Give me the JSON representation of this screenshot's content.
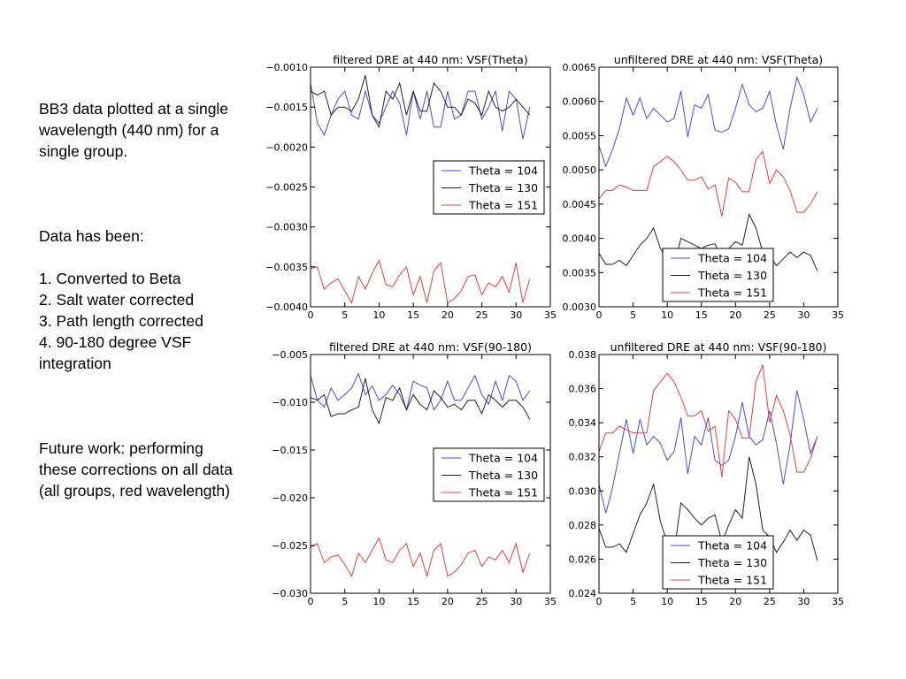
{
  "notes": {
    "intro": "BB3 data plotted at a single wavelength (440 nm) for a single group.",
    "steps_heading": "Data has been:",
    "steps": [
      "1. Converted to Beta",
      "2. Salt water corrected",
      "3. Path length corrected",
      "4. 90-180 degree VSF integration"
    ],
    "future": "Future work: performing these corrections on all data (all groups, red wavelength)"
  },
  "colors": {
    "theta_104": "#4a4ad6",
    "theta_130": "#222222",
    "theta_151": "#e04040"
  },
  "chart_data": [
    {
      "type": "line",
      "title": "filtered DRE at 440 nm: VSF(Theta)",
      "xlim": [
        0,
        35
      ],
      "ylim": [
        -0.004,
        -0.001
      ],
      "xticks": [
        "0",
        "5",
        "10",
        "15",
        "20",
        "25",
        "30",
        "35"
      ],
      "yticks": [
        "-0.0040",
        "-0.0035",
        "-0.0030",
        "-0.0025",
        "-0.0020",
        "-0.0015",
        "-0.0010"
      ],
      "legend": "right",
      "x": [
        0,
        1,
        2,
        3,
        4,
        5,
        6,
        7,
        8,
        9,
        10,
        11,
        12,
        13,
        14,
        15,
        16,
        17,
        18,
        19,
        20,
        21,
        22,
        23,
        24,
        25,
        26,
        27,
        28,
        29,
        30,
        31,
        32
      ],
      "series": [
        {
          "name": "Theta = 104",
          "color": "#4a4ad6",
          "values": [
            -0.0012,
            -0.0017,
            -0.00185,
            -0.0016,
            -0.0014,
            -0.0013,
            -0.0016,
            -0.00165,
            -0.0013,
            -0.0016,
            -0.0017,
            -0.0015,
            -0.0013,
            -0.00145,
            -0.00185,
            -0.0013,
            -0.00165,
            -0.0013,
            -0.00175,
            -0.00175,
            -0.0013,
            -0.00165,
            -0.0016,
            -0.0013,
            -0.0013,
            -0.00165,
            -0.0015,
            -0.0013,
            -0.0018,
            -0.0013,
            -0.0014,
            -0.0019,
            -0.0015
          ]
        },
        {
          "name": "Theta = 130",
          "color": "#222222",
          "values": [
            -0.0013,
            -0.00135,
            -0.0013,
            -0.0016,
            -0.0015,
            -0.0015,
            -0.00155,
            -0.0014,
            -0.0011,
            -0.0016,
            -0.00175,
            -0.0013,
            -0.0014,
            -0.0012,
            -0.0016,
            -0.0013,
            -0.00155,
            -0.00155,
            -0.0012,
            -0.0013,
            -0.0015,
            -0.0015,
            -0.0016,
            -0.0014,
            -0.00145,
            -0.0016,
            -0.0013,
            -0.0015,
            -0.00155,
            -0.0015,
            -0.0014,
            -0.0015,
            -0.0016
          ]
        },
        {
          "name": "Theta = 151",
          "color": "#e04040",
          "values": [
            -0.00352,
            -0.0035,
            -0.00378,
            -0.0037,
            -0.00365,
            -0.0038,
            -0.00395,
            -0.00362,
            -0.00378,
            -0.00358,
            -0.00342,
            -0.00372,
            -0.00375,
            -0.0036,
            -0.0035,
            -0.00385,
            -0.00362,
            -0.00395,
            -0.00355,
            -0.00345,
            -0.00395,
            -0.0039,
            -0.0038,
            -0.00362,
            -0.0036,
            -0.00385,
            -0.0037,
            -0.00375,
            -0.00362,
            -0.00382,
            -0.00345,
            -0.00395,
            -0.00365
          ]
        }
      ]
    },
    {
      "type": "line",
      "title": "unfiltered DRE at 440 nm: VSF(Theta)",
      "xlim": [
        0,
        35
      ],
      "ylim": [
        0.003,
        0.0065
      ],
      "xticks": [
        "0",
        "5",
        "10",
        "15",
        "20",
        "25",
        "30",
        "35"
      ],
      "yticks": [
        "0.0030",
        "0.0035",
        "0.0040",
        "0.0045",
        "0.0050",
        "0.0055",
        "0.0060",
        "0.0065"
      ],
      "legend": "lower right",
      "x": [
        0,
        1,
        2,
        3,
        4,
        5,
        6,
        7,
        8,
        9,
        10,
        11,
        12,
        13,
        14,
        15,
        16,
        17,
        18,
        19,
        20,
        21,
        22,
        23,
        24,
        25,
        26,
        27,
        28,
        29,
        30,
        31,
        32
      ],
      "series": [
        {
          "name": "Theta = 104",
          "color": "#4a4ad6",
          "values": [
            0.00535,
            0.00505,
            0.0053,
            0.0056,
            0.00605,
            0.0058,
            0.00605,
            0.00575,
            0.0059,
            0.0058,
            0.0057,
            0.00575,
            0.00615,
            0.00548,
            0.00595,
            0.0059,
            0.0061,
            0.00558,
            0.00555,
            0.0056,
            0.0059,
            0.00625,
            0.00595,
            0.00585,
            0.0059,
            0.00615,
            0.00565,
            0.0053,
            0.0059,
            0.00635,
            0.0061,
            0.0057,
            0.0059
          ]
        },
        {
          "name": "Theta = 130",
          "color": "#222222",
          "values": [
            0.00378,
            0.00362,
            0.00362,
            0.00368,
            0.0036,
            0.00375,
            0.0039,
            0.004,
            0.00415,
            0.00385,
            0.0037,
            0.0036,
            0.004,
            0.00395,
            0.0039,
            0.00385,
            0.0039,
            0.00392,
            0.0037,
            0.00385,
            0.00395,
            0.0039,
            0.00435,
            0.00415,
            0.0038,
            0.00375,
            0.0036,
            0.0037,
            0.0038,
            0.00372,
            0.0038,
            0.00375,
            0.00352
          ]
        },
        {
          "name": "Theta = 151",
          "color": "#e04040",
          "values": [
            0.00458,
            0.0047,
            0.0047,
            0.00478,
            0.00475,
            0.0047,
            0.0047,
            0.0047,
            0.00505,
            0.00512,
            0.0052,
            0.00512,
            0.005,
            0.00485,
            0.00485,
            0.0049,
            0.00472,
            0.00478,
            0.00432,
            0.00488,
            0.00482,
            0.00468,
            0.00468,
            0.00515,
            0.00527,
            0.0048,
            0.005,
            0.0049,
            0.0047,
            0.00438,
            0.00438,
            0.0045,
            0.00468
          ]
        }
      ]
    },
    {
      "type": "line",
      "title": "filtered DRE at 440 nm: VSF(90-180)",
      "xlim": [
        0,
        35
      ],
      "ylim": [
        -0.03,
        -0.005
      ],
      "xticks": [
        "0",
        "5",
        "10",
        "15",
        "20",
        "25",
        "30",
        "35"
      ],
      "yticks": [
        "-0.030",
        "-0.025",
        "-0.020",
        "-0.015",
        "-0.010",
        "-0.005"
      ],
      "legend": "right",
      "x": [
        0,
        1,
        2,
        3,
        4,
        5,
        6,
        7,
        8,
        9,
        10,
        11,
        12,
        13,
        14,
        15,
        16,
        17,
        18,
        19,
        20,
        21,
        22,
        23,
        24,
        25,
        26,
        27,
        28,
        29,
        30,
        31,
        32
      ],
      "series": [
        {
          "name": "Theta = 104",
          "color": "#4a4ad6",
          "values": [
            -0.0072,
            -0.0098,
            -0.0105,
            -0.0085,
            -0.0098,
            -0.0092,
            -0.0085,
            -0.007,
            -0.0092,
            -0.0083,
            -0.0098,
            -0.0092,
            -0.0082,
            -0.0092,
            -0.0108,
            -0.0078,
            -0.0082,
            -0.0085,
            -0.0108,
            -0.0098,
            -0.0078,
            -0.0098,
            -0.0098,
            -0.0085,
            -0.0072,
            -0.0092,
            -0.0102,
            -0.0078,
            -0.0098,
            -0.0072,
            -0.0078,
            -0.0098,
            -0.0088
          ]
        },
        {
          "name": "Theta = 130",
          "color": "#222222",
          "values": [
            -0.0095,
            -0.0098,
            -0.0092,
            -0.0115,
            -0.0112,
            -0.0112,
            -0.0108,
            -0.0105,
            -0.0075,
            -0.0108,
            -0.0122,
            -0.0095,
            -0.0098,
            -0.0085,
            -0.0108,
            -0.0092,
            -0.0102,
            -0.0108,
            -0.0088,
            -0.0095,
            -0.0105,
            -0.0102,
            -0.0108,
            -0.0098,
            -0.0098,
            -0.0112,
            -0.0092,
            -0.0098,
            -0.0105,
            -0.0098,
            -0.0098,
            -0.0105,
            -0.0118
          ]
        },
        {
          "name": "Theta = 151",
          "color": "#e04040",
          "values": [
            -0.0252,
            -0.0248,
            -0.0268,
            -0.0262,
            -0.026,
            -0.027,
            -0.0282,
            -0.0258,
            -0.0268,
            -0.0255,
            -0.0242,
            -0.0265,
            -0.0268,
            -0.0255,
            -0.0248,
            -0.0272,
            -0.0258,
            -0.0282,
            -0.0255,
            -0.0248,
            -0.0282,
            -0.0278,
            -0.027,
            -0.0258,
            -0.0255,
            -0.0272,
            -0.0262,
            -0.0265,
            -0.0255,
            -0.0268,
            -0.0248,
            -0.0278,
            -0.0258
          ]
        }
      ]
    },
    {
      "type": "line",
      "title": "unfiltered DRE at 440 nm: VSF(90-180)",
      "xlim": [
        0,
        35
      ],
      "ylim": [
        0.024,
        0.038
      ],
      "xticks": [
        "0",
        "5",
        "10",
        "15",
        "20",
        "25",
        "30",
        "35"
      ],
      "yticks": [
        "0.024",
        "0.026",
        "0.028",
        "0.030",
        "0.032",
        "0.034",
        "0.036",
        "0.038"
      ],
      "legend": "lower right",
      "x": [
        0,
        1,
        2,
        3,
        4,
        5,
        6,
        7,
        8,
        9,
        10,
        11,
        12,
        13,
        14,
        15,
        16,
        17,
        18,
        19,
        20,
        21,
        22,
        23,
        24,
        25,
        26,
        27,
        28,
        29,
        30,
        31,
        32
      ],
      "series": [
        {
          "name": "Theta = 104",
          "color": "#4a4ad6",
          "values": [
            0.0304,
            0.0287,
            0.0302,
            0.0322,
            0.0342,
            0.0322,
            0.0342,
            0.0327,
            0.0332,
            0.0328,
            0.0318,
            0.0323,
            0.0343,
            0.031,
            0.0332,
            0.0327,
            0.0343,
            0.0318,
            0.0315,
            0.0318,
            0.0332,
            0.0352,
            0.0332,
            0.0327,
            0.033,
            0.0347,
            0.0328,
            0.0304,
            0.0327,
            0.0359,
            0.0342,
            0.0322,
            0.0332
          ]
        },
        {
          "name": "Theta = 130",
          "color": "#222222",
          "values": [
            0.0278,
            0.0267,
            0.0267,
            0.0269,
            0.0264,
            0.0275,
            0.0286,
            0.0293,
            0.0304,
            0.0282,
            0.027,
            0.0264,
            0.0293,
            0.0289,
            0.0284,
            0.028,
            0.0284,
            0.0286,
            0.027,
            0.028,
            0.0289,
            0.0284,
            0.032,
            0.0304,
            0.0277,
            0.0273,
            0.0264,
            0.027,
            0.0277,
            0.0271,
            0.0277,
            0.0274,
            0.0259
          ]
        },
        {
          "name": "Theta = 151",
          "color": "#e04040",
          "values": [
            0.0323,
            0.0334,
            0.0334,
            0.0338,
            0.0336,
            0.0334,
            0.0334,
            0.0334,
            0.0359,
            0.0364,
            0.0369,
            0.0364,
            0.0355,
            0.0344,
            0.0344,
            0.0347,
            0.0335,
            0.0338,
            0.0308,
            0.0347,
            0.0342,
            0.0331,
            0.0331,
            0.0364,
            0.0374,
            0.034,
            0.0356,
            0.0347,
            0.0333,
            0.0311,
            0.0311,
            0.0319,
            0.0332
          ]
        }
      ]
    }
  ]
}
